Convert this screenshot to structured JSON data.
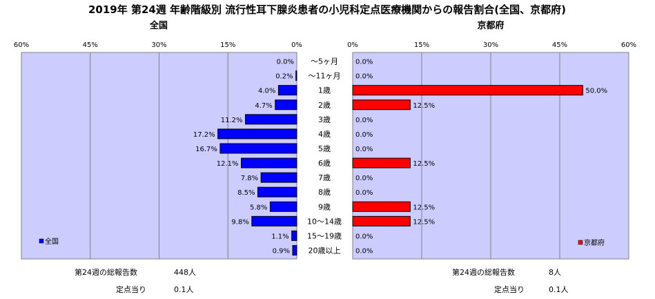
{
  "title": "2019年 第24週 年齢階級別 流行性耳下腺炎患者の小児科定点医療機関からの報告割合(全国、京都府)",
  "chart_data": {
    "type": "bar",
    "orientation": "horizontal-butterfly",
    "categories": [
      "～5ヶ月",
      "～11ヶ月",
      "1歳",
      "2歳",
      "3歳",
      "4歳",
      "5歳",
      "6歳",
      "7歳",
      "8歳",
      "9歳",
      "10～14歳",
      "15～19歳",
      "20歳以上"
    ],
    "xlim": [
      0,
      60
    ],
    "ticks": [
      "0%",
      "15%",
      "30%",
      "45%",
      "60%"
    ],
    "series": [
      {
        "name": "全国",
        "panel": "left",
        "color": "#0000ff",
        "values": [
          0.0,
          0.2,
          4.0,
          4.7,
          11.2,
          17.2,
          16.7,
          12.1,
          7.8,
          8.5,
          5.8,
          9.8,
          1.1,
          0.9
        ],
        "labels": [
          "0.0%",
          "0.2%",
          "4.0%",
          "4.7%",
          "11.2%",
          "17.2%",
          "16.7%",
          "12.1%",
          "7.8%",
          "8.5%",
          "5.8%",
          "9.8%",
          "1.1%",
          "0.9%"
        ],
        "legend": "全国",
        "legend_position": "bottom-left"
      },
      {
        "name": "京都府",
        "panel": "right",
        "color": "#ff0000",
        "values": [
          0.0,
          0.0,
          50.0,
          12.5,
          0.0,
          0.0,
          0.0,
          12.5,
          0.0,
          0.0,
          12.5,
          12.5,
          0.0,
          0.0
        ],
        "labels": [
          "0.0%",
          "0.0%",
          "50.0%",
          "12.5%",
          "0.0%",
          "0.0%",
          "0.0%",
          "12.5%",
          "0.0%",
          "0.0%",
          "12.5%",
          "12.5%",
          "0.0%",
          "0.0%"
        ],
        "legend": "京都府",
        "legend_position": "bottom-right"
      }
    ],
    "grid": true,
    "plot_background": "#ccccff"
  },
  "footer": {
    "left": {
      "total_label": "第24週の総報告数",
      "total_value": "448人",
      "per_label": "定点当り",
      "per_value": "0.1人"
    },
    "right": {
      "total_label": "第24週の総報告数",
      "total_value": "8人",
      "per_label": "定点当り",
      "per_value": "0.1人"
    }
  }
}
